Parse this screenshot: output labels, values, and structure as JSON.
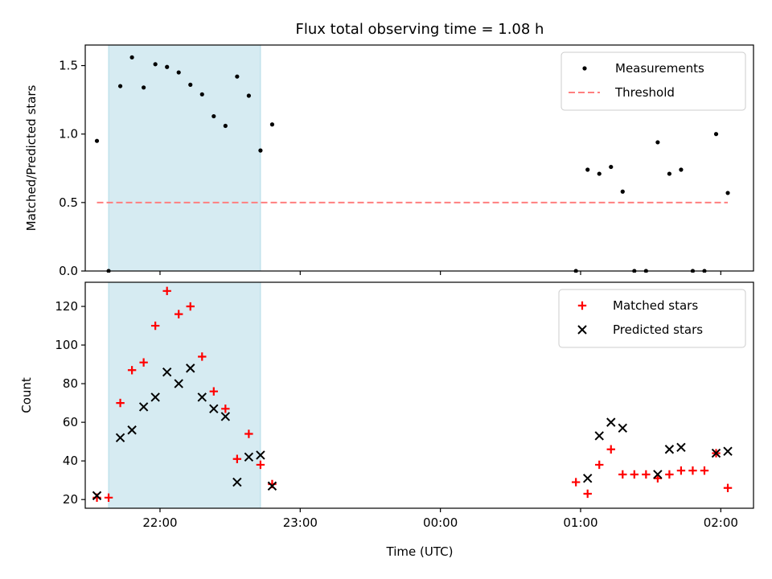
{
  "chart_data": {
    "title": "Flux total observing time = 1.08 h",
    "xlabel": "Time (UTC)",
    "x_domain": [
      "21:28",
      "02:14"
    ],
    "xticks": [
      {
        "time": "22:00",
        "label": "22:00"
      },
      {
        "time": "23:00",
        "label": "23:00"
      },
      {
        "time": "00:00",
        "label": "00:00"
      },
      {
        "time": "01:00",
        "label": "01:00"
      },
      {
        "time": "02:00",
        "label": "02:00"
      }
    ],
    "shaded_interval": {
      "start": "21:38",
      "end": "22:43",
      "color": "#add8e6"
    },
    "panels": [
      {
        "type": "scatter",
        "ylabel": "Matched/Predicted stars",
        "ylim": [
          0,
          1.65
        ],
        "yticks": [
          0.0,
          0.5,
          1.0,
          1.5
        ],
        "ytick_labels": [
          "0.0",
          "0.5",
          "1.0",
          "1.5"
        ],
        "legend_position": "upper-right",
        "threshold": {
          "name": "Threshold",
          "y": 0.5,
          "x_start": "21:33",
          "x_end": "02:03",
          "color": "#ff7f7f"
        },
        "series": [
          {
            "name": "Measurements",
            "marker": "dot",
            "color": "#000000",
            "points": [
              [
                "21:33",
                0.95
              ],
              [
                "21:38",
                0.0
              ],
              [
                "21:43",
                1.35
              ],
              [
                "21:48",
                1.56
              ],
              [
                "21:53",
                1.34
              ],
              [
                "21:58",
                1.51
              ],
              [
                "22:03",
                1.49
              ],
              [
                "22:08",
                1.45
              ],
              [
                "22:13",
                1.36
              ],
              [
                "22:18",
                1.29
              ],
              [
                "22:23",
                1.13
              ],
              [
                "22:28",
                1.06
              ],
              [
                "22:33",
                1.42
              ],
              [
                "22:38",
                1.28
              ],
              [
                "22:43",
                0.88
              ],
              [
                "22:48",
                1.07
              ],
              [
                "00:58",
                0.0
              ],
              [
                "01:03",
                0.74
              ],
              [
                "01:08",
                0.71
              ],
              [
                "01:13",
                0.76
              ],
              [
                "01:18",
                0.58
              ],
              [
                "01:23",
                0.0
              ],
              [
                "01:28",
                0.0
              ],
              [
                "01:33",
                0.94
              ],
              [
                "01:38",
                0.71
              ],
              [
                "01:43",
                0.74
              ],
              [
                "01:48",
                0.0
              ],
              [
                "01:53",
                0.0
              ],
              [
                "01:58",
                1.0
              ],
              [
                "02:03",
                0.57
              ]
            ]
          }
        ]
      },
      {
        "type": "scatter",
        "ylabel": "Count",
        "ylim": [
          15.5,
          132.5
        ],
        "yticks": [
          20,
          40,
          60,
          80,
          100,
          120
        ],
        "ytick_labels": [
          "20",
          "40",
          "60",
          "80",
          "100",
          "120"
        ],
        "legend_position": "upper-right",
        "series": [
          {
            "name": "Matched stars",
            "marker": "plus",
            "color": "#ff0000",
            "points": [
              [
                "21:33",
                21
              ],
              [
                "21:38",
                21
              ],
              [
                "21:43",
                70
              ],
              [
                "21:48",
                87
              ],
              [
                "21:53",
                91
              ],
              [
                "21:58",
                110
              ],
              [
                "22:03",
                128
              ],
              [
                "22:08",
                116
              ],
              [
                "22:13",
                120
              ],
              [
                "22:18",
                94
              ],
              [
                "22:23",
                76
              ],
              [
                "22:28",
                67
              ],
              [
                "22:33",
                41
              ],
              [
                "22:38",
                54
              ],
              [
                "22:43",
                38
              ],
              [
                "22:48",
                28
              ],
              [
                "00:58",
                29
              ],
              [
                "01:03",
                23
              ],
              [
                "01:08",
                38
              ],
              [
                "01:13",
                46
              ],
              [
                "01:18",
                33
              ],
              [
                "01:23",
                33
              ],
              [
                "01:28",
                33
              ],
              [
                "01:33",
                31
              ],
              [
                "01:38",
                33
              ],
              [
                "01:43",
                35
              ],
              [
                "01:48",
                35
              ],
              [
                "01:53",
                35
              ],
              [
                "01:58",
                44
              ],
              [
                "02:03",
                26
              ]
            ]
          },
          {
            "name": "Predicted stars",
            "marker": "x",
            "color": "#000000",
            "points": [
              [
                "21:33",
                22
              ],
              [
                "21:43",
                52
              ],
              [
                "21:48",
                56
              ],
              [
                "21:53",
                68
              ],
              [
                "21:58",
                73
              ],
              [
                "22:03",
                86
              ],
              [
                "22:08",
                80
              ],
              [
                "22:13",
                88
              ],
              [
                "22:18",
                73
              ],
              [
                "22:23",
                67
              ],
              [
                "22:28",
                63
              ],
              [
                "22:33",
                29
              ],
              [
                "22:38",
                42
              ],
              [
                "22:43",
                43
              ],
              [
                "22:48",
                27
              ],
              [
                "01:03",
                31
              ],
              [
                "01:08",
                53
              ],
              [
                "01:13",
                60
              ],
              [
                "01:18",
                57
              ],
              [
                "01:33",
                33
              ],
              [
                "01:38",
                46
              ],
              [
                "01:43",
                47
              ],
              [
                "01:58",
                44
              ],
              [
                "02:03",
                45
              ]
            ]
          }
        ]
      }
    ]
  }
}
